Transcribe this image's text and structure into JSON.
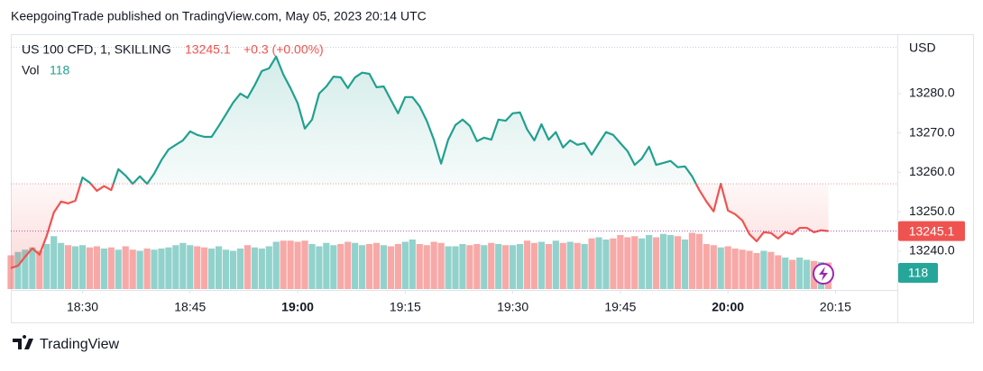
{
  "header": {
    "text": "KeepgoingTrade published on TradingView.com, May 05, 2023 20:14 UTC"
  },
  "footer": {
    "brand": "TradingView"
  },
  "chart_data": {
    "type": "baseline",
    "title": "US 100 CFD, 1, SKILLING",
    "change": "+0.3 (+0.00%)",
    "currency": "USD",
    "baseline": 13257.1,
    "x": [
      "18:20",
      "18:21",
      "18:22",
      "18:23",
      "18:24",
      "18:25",
      "18:26",
      "18:27",
      "18:28",
      "18:29",
      "18:30",
      "18:31",
      "18:32",
      "18:33",
      "18:34",
      "18:35",
      "18:36",
      "18:37",
      "18:38",
      "18:39",
      "18:40",
      "18:41",
      "18:42",
      "18:43",
      "18:44",
      "18:45",
      "18:46",
      "18:47",
      "18:48",
      "18:49",
      "18:50",
      "18:51",
      "18:52",
      "18:53",
      "18:54",
      "18:55",
      "18:56",
      "18:57",
      "18:58",
      "18:59",
      "19:00",
      "19:01",
      "19:02",
      "19:03",
      "19:04",
      "19:05",
      "19:06",
      "19:07",
      "19:08",
      "19:09",
      "19:10",
      "19:11",
      "19:12",
      "19:13",
      "19:14",
      "19:15",
      "19:16",
      "19:17",
      "19:18",
      "19:19",
      "19:20",
      "19:21",
      "19:22",
      "19:23",
      "19:24",
      "19:25",
      "19:26",
      "19:27",
      "19:28",
      "19:29",
      "19:30",
      "19:31",
      "19:32",
      "19:33",
      "19:34",
      "19:35",
      "19:36",
      "19:37",
      "19:38",
      "19:39",
      "19:40",
      "19:41",
      "19:42",
      "19:43",
      "19:44",
      "19:45",
      "19:46",
      "19:47",
      "19:48",
      "19:49",
      "19:50",
      "19:51",
      "19:52",
      "19:53",
      "19:54",
      "19:55",
      "19:56",
      "19:57",
      "19:58",
      "19:59",
      "20:00",
      "20:01",
      "20:02",
      "20:03",
      "20:04",
      "20:05",
      "20:06",
      "20:07",
      "20:08",
      "20:09",
      "20:10",
      "20:11",
      "20:12",
      "20:13",
      "20:14"
    ],
    "series": [
      {
        "name": "US 100 CFD, 1, SKILLING",
        "up_color": "#22a08f",
        "down_color": "#ef5350",
        "values": [
          13235.7,
          13236.3,
          13238.6,
          13240.7,
          13239.1,
          13243.9,
          13249.8,
          13252.6,
          13252.1,
          13252.8,
          13258.7,
          13257.4,
          13255.3,
          13256.5,
          13255.5,
          13260.8,
          13259.2,
          13257.1,
          13259.0,
          13257.1,
          13259.7,
          13263.1,
          13265.8,
          13267.0,
          13268.1,
          13270.4,
          13269.5,
          13269.0,
          13269.0,
          13271.8,
          13274.7,
          13277.7,
          13280.0,
          13278.9,
          13282.1,
          13285.7,
          13286.4,
          13289.4,
          13284.8,
          13281.4,
          13277.5,
          13271.1,
          13273.4,
          13280.0,
          13281.8,
          13284.3,
          13284.1,
          13281.4,
          13284.1,
          13285.3,
          13285.0,
          13281.6,
          13281.8,
          13278.4,
          13275.0,
          13279.1,
          13279.1,
          13276.8,
          13273.1,
          13268.3,
          13262.2,
          13268.3,
          13272.0,
          13273.4,
          13271.8,
          13267.9,
          13268.8,
          13268.3,
          13273.4,
          13273.1,
          13275.0,
          13275.2,
          13270.9,
          13268.1,
          13272.2,
          13268.3,
          13270.2,
          13266.3,
          13268.1,
          13267.0,
          13267.4,
          13264.5,
          13267.4,
          13270.2,
          13269.5,
          13267.4,
          13265.4,
          13261.9,
          13263.5,
          13266.5,
          13261.9,
          13262.4,
          13262.9,
          13261.3,
          13261.5,
          13259.0,
          13255.5,
          13252.6,
          13250.1,
          13257.1,
          13250.3,
          13249.4,
          13247.8,
          13244.3,
          13242.5,
          13244.8,
          13244.6,
          13243.2,
          13244.8,
          13244.3,
          13245.9,
          13245.9,
          13244.8,
          13245.3,
          13245.1
        ]
      }
    ],
    "volume": {
      "name": "Vol",
      "up_color": "rgba(38,166,154,0.5)",
      "down_color": "rgba(239,83,80,0.5)",
      "lim": [
        0,
        400
      ],
      "values": [
        150,
        165,
        175,
        185,
        170,
        200,
        235,
        205,
        195,
        190,
        195,
        185,
        190,
        180,
        185,
        175,
        190,
        175,
        170,
        180,
        175,
        180,
        185,
        195,
        205,
        195,
        190,
        185,
        180,
        190,
        175,
        170,
        180,
        195,
        185,
        180,
        190,
        210,
        215,
        215,
        210,
        215,
        200,
        190,
        205,
        195,
        200,
        210,
        205,
        195,
        200,
        205,
        195,
        190,
        200,
        210,
        220,
        200,
        195,
        210,
        205,
        190,
        190,
        200,
        195,
        200,
        195,
        205,
        200,
        195,
        195,
        200,
        215,
        205,
        210,
        200,
        215,
        205,
        210,
        205,
        200,
        225,
        230,
        220,
        225,
        240,
        230,
        235,
        225,
        240,
        230,
        245,
        240,
        235,
        220,
        250,
        245,
        200,
        195,
        185,
        190,
        180,
        175,
        170,
        160,
        170,
        165,
        150,
        140,
        130,
        140,
        130,
        125,
        120,
        118
      ]
    },
    "xlim": [
      "18:20",
      "20:24"
    ],
    "xticks": [
      "18:30",
      "18:45",
      "19:00",
      "19:15",
      "19:30",
      "19:45",
      "20:00",
      "20:15"
    ],
    "ylim": [
      13230.6,
      13294.6
    ],
    "yticks": [
      {
        "value": 13240,
        "label": "13240.0"
      },
      {
        "value": 13250,
        "label": "13250.0"
      },
      {
        "value": 13260,
        "label": "13260.0"
      },
      {
        "value": 13270,
        "label": "13270.0"
      },
      {
        "value": 13280,
        "label": "13280.0"
      }
    ]
  }
}
